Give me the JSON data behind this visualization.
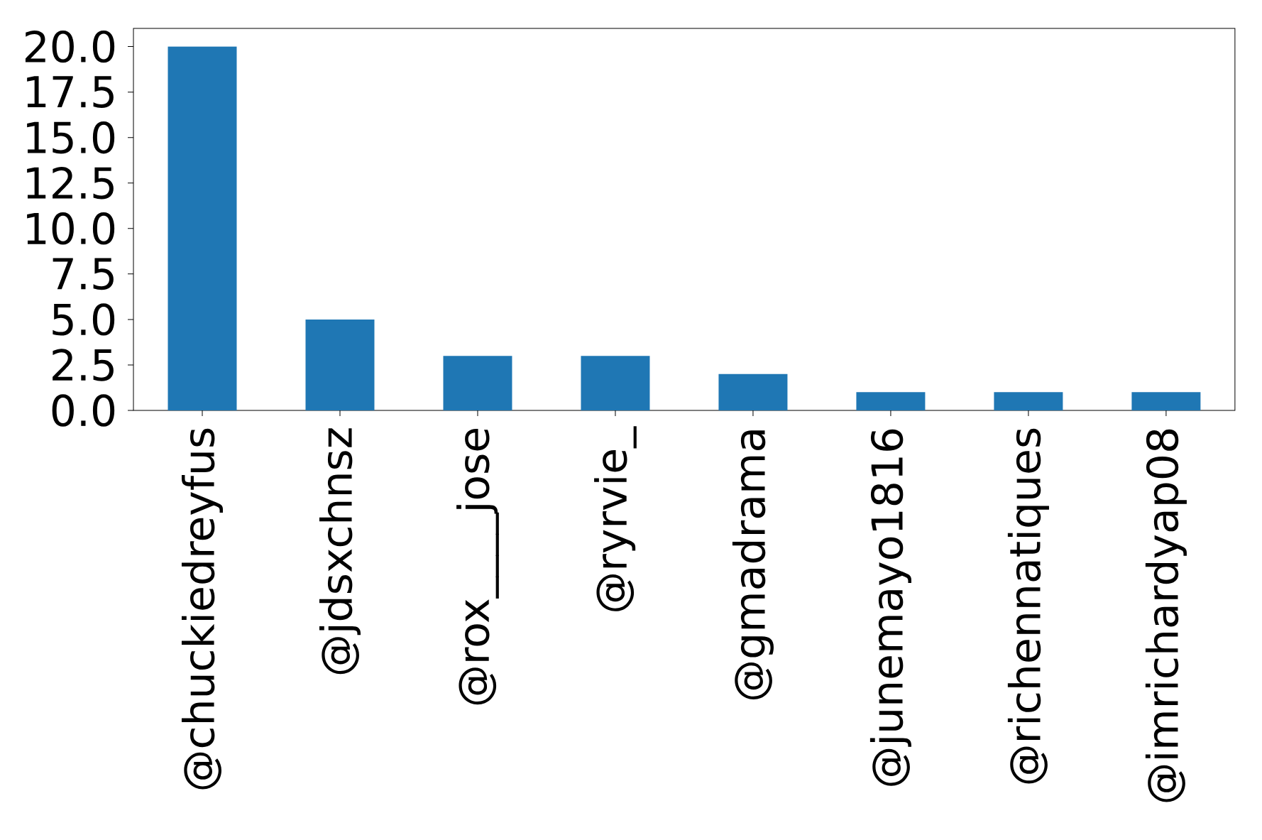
{
  "chart_data": {
    "type": "bar",
    "categories": [
      "@chuckiedreyfus",
      "@jdsxchnsz",
      "@rox____jose",
      "@ryrvie_",
      "@gmadrama",
      "@junemayo1816",
      "@richennatiques",
      "@imrichardyap08"
    ],
    "values": [
      20,
      5,
      3,
      3,
      2,
      1,
      1,
      1
    ],
    "color": "#1f77b4",
    "ylim": [
      0,
      21
    ],
    "yticks": [
      {
        "value": 0,
        "label": "0.0"
      },
      {
        "value": 2.5,
        "label": "2.5"
      },
      {
        "value": 5,
        "label": "5.0"
      },
      {
        "value": 7.5,
        "label": "7.5"
      },
      {
        "value": 10,
        "label": "10.0"
      },
      {
        "value": 12.5,
        "label": "12.5"
      },
      {
        "value": 15,
        "label": "15.0"
      },
      {
        "value": 17.5,
        "label": "17.5"
      },
      {
        "value": 20,
        "label": "20.0"
      }
    ],
    "grid": false
  }
}
